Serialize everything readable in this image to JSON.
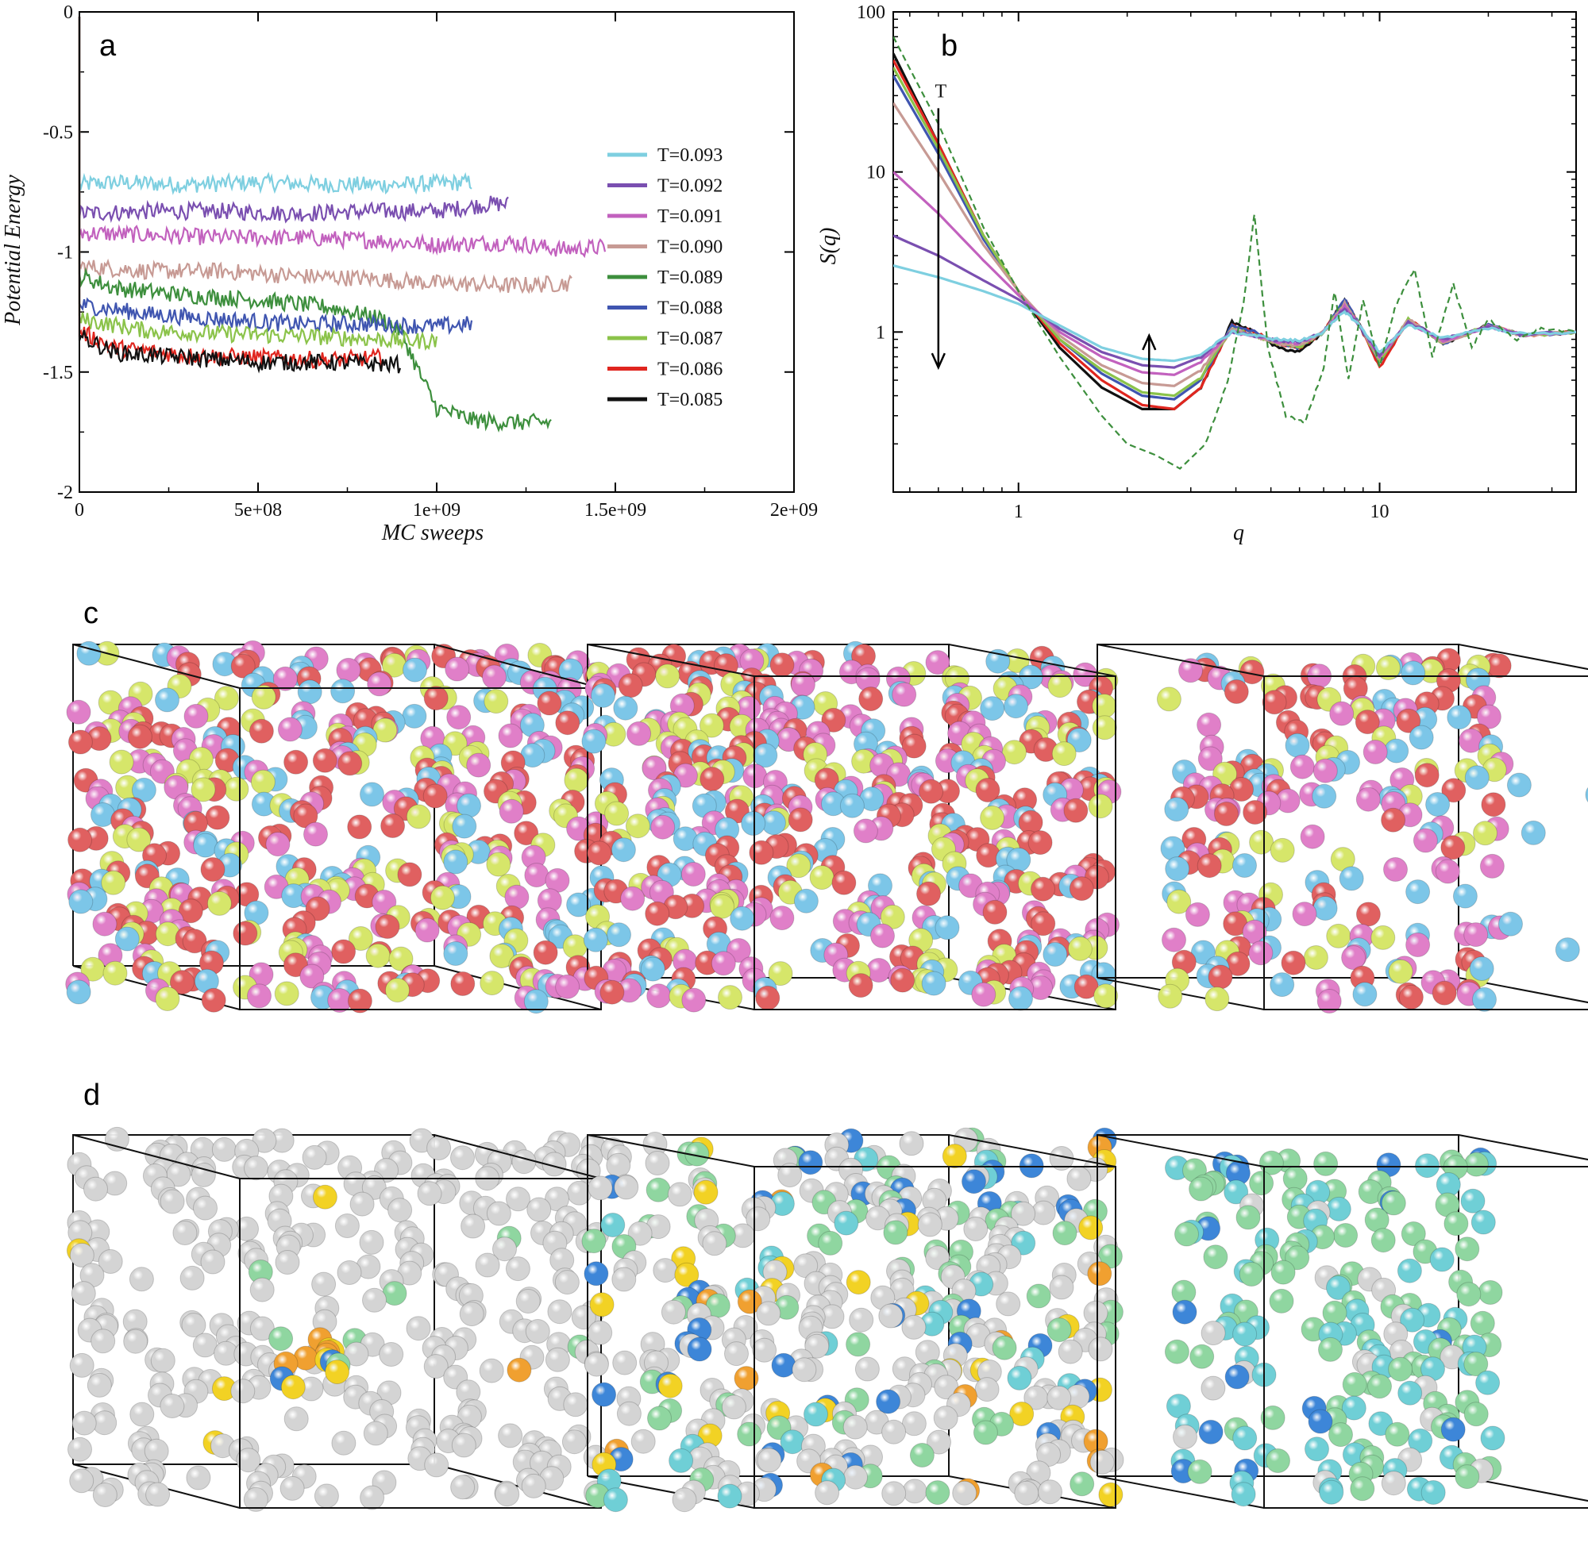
{
  "panels": {
    "a": "a",
    "b": "b",
    "c": "c",
    "d": "d"
  },
  "chart_data": [
    {
      "panel": "a",
      "type": "line",
      "xlabel": "MC sweeps",
      "ylabel": "Potential Energy",
      "xlim": [
        0,
        2000000000
      ],
      "ylim": [
        -2,
        0
      ],
      "xticks": [
        "0",
        "5e+08",
        "1e+09",
        "1.5e+09",
        "2e+09"
      ],
      "xtick_values": [
        0,
        500000000,
        1000000000,
        1500000000,
        2000000000
      ],
      "yticks": [
        "-2",
        "-1.5",
        "-1",
        "-0.5",
        "0"
      ],
      "ytick_values": [
        -2,
        -1.5,
        -1,
        -0.5,
        0
      ],
      "legend_position": "right",
      "series": [
        {
          "name": "T=0.093",
          "color": "#7ecfe0",
          "x": [
            0,
            100000000,
            300000000,
            500000000,
            700000000,
            900000000,
            1100000000
          ],
          "y": [
            -0.72,
            -0.71,
            -0.72,
            -0.71,
            -0.72,
            -0.72,
            -0.71
          ]
        },
        {
          "name": "T=0.092",
          "color": "#7a4fb0",
          "x": [
            0,
            200000000,
            400000000,
            600000000,
            800000000,
            1000000000,
            1150000000,
            1200000000
          ],
          "y": [
            -0.84,
            -0.83,
            -0.83,
            -0.84,
            -0.83,
            -0.83,
            -0.8,
            -0.8
          ]
        },
        {
          "name": "T=0.091",
          "color": "#c261be",
          "x": [
            0,
            200000000,
            400000000,
            600000000,
            800000000,
            1000000000,
            1200000000,
            1350000000,
            1470000000
          ],
          "y": [
            -0.92,
            -0.93,
            -0.94,
            -0.94,
            -0.95,
            -0.97,
            -0.96,
            -0.99,
            -0.98
          ]
        },
        {
          "name": "T=0.090",
          "color": "#c79a94",
          "x": [
            0,
            200000000,
            400000000,
            600000000,
            800000000,
            1000000000,
            1200000000,
            1380000000
          ],
          "y": [
            -1.06,
            -1.08,
            -1.08,
            -1.1,
            -1.11,
            -1.13,
            -1.14,
            -1.13
          ]
        },
        {
          "name": "T=0.089",
          "color": "#3d8f3d",
          "x": [
            0,
            100000000,
            300000000,
            500000000,
            700000000,
            850000000,
            900000000,
            950000000,
            1000000000,
            1100000000,
            1200000000,
            1320000000
          ],
          "y": [
            -1.1,
            -1.15,
            -1.18,
            -1.2,
            -1.23,
            -1.28,
            -1.33,
            -1.5,
            -1.65,
            -1.7,
            -1.71,
            -1.71
          ]
        },
        {
          "name": "T=0.088",
          "color": "#3f55b0",
          "x": [
            0,
            200000000,
            400000000,
            600000000,
            800000000,
            1000000000,
            1100000000
          ],
          "y": [
            -1.22,
            -1.26,
            -1.28,
            -1.3,
            -1.3,
            -1.31,
            -1.3
          ]
        },
        {
          "name": "T=0.087",
          "color": "#8bc34a",
          "x": [
            0,
            200000000,
            400000000,
            600000000,
            800000000,
            900000000,
            1000000000
          ],
          "y": [
            -1.28,
            -1.33,
            -1.34,
            -1.35,
            -1.36,
            -1.37,
            -1.37
          ]
        },
        {
          "name": "T=0.086",
          "color": "#e0261f",
          "x": [
            0,
            100000000,
            300000000,
            500000000,
            700000000,
            850000000
          ],
          "y": [
            -1.33,
            -1.4,
            -1.43,
            -1.44,
            -1.45,
            -1.44
          ]
        },
        {
          "name": "T=0.085",
          "color": "#111111",
          "x": [
            0,
            100000000,
            300000000,
            500000000,
            700000000,
            900000000
          ],
          "y": [
            -1.35,
            -1.42,
            -1.44,
            -1.46,
            -1.46,
            -1.47
          ]
        }
      ]
    },
    {
      "panel": "b",
      "type": "line",
      "xlabel": "q",
      "ylabel": "S(q)",
      "xscale": "log",
      "yscale": "log",
      "xlim": [
        0.45,
        35
      ],
      "ylim": [
        0.1,
        100
      ],
      "xticks": [
        "1",
        "10"
      ],
      "xtick_values": [
        1,
        10
      ],
      "yticks": [
        "1",
        "10",
        "100"
      ],
      "ytick_values": [
        1,
        10,
        100
      ],
      "annotations": [
        {
          "text": "T",
          "direction": "down",
          "x": 0.6,
          "y_from": 25,
          "y_to": 0.6
        },
        {
          "direction": "up",
          "x": 2.3,
          "y_from": 0.33,
          "y_to": 0.95
        }
      ],
      "series": [
        {
          "color": "#111111",
          "style": "solid",
          "x": [
            0.45,
            0.6,
            0.8,
            1.0,
            1.3,
            1.7,
            2.2,
            2.7,
            3.2,
            3.9,
            4.5,
            5.2,
            6.0,
            7.0,
            8.0,
            8.8,
            10.0,
            12.0,
            15.0,
            20.0,
            25.0,
            35.0
          ],
          "y": [
            55,
            15,
            4,
            1.8,
            0.8,
            0.45,
            0.33,
            0.33,
            0.45,
            1.15,
            1.0,
            0.8,
            0.75,
            1.0,
            1.6,
            1.1,
            0.65,
            1.2,
            0.85,
            1.1,
            0.95,
            1.0
          ]
        },
        {
          "color": "#e0261f",
          "style": "solid",
          "x": [
            0.45,
            0.6,
            0.8,
            1.0,
            1.3,
            1.7,
            2.2,
            2.7,
            3.2,
            3.9,
            4.5,
            5.2,
            6.0,
            7.0,
            8.0,
            8.8,
            10.0,
            12.0,
            15.0,
            20.0,
            25.0,
            35.0
          ],
          "y": [
            50,
            15,
            4,
            1.8,
            0.85,
            0.5,
            0.35,
            0.33,
            0.45,
            1.1,
            1.0,
            0.85,
            0.8,
            1.0,
            1.6,
            1.1,
            0.6,
            1.2,
            0.85,
            1.1,
            0.95,
            1.0
          ]
        },
        {
          "color": "#3f55b0",
          "style": "solid",
          "x": [
            0.45,
            0.6,
            0.8,
            1.0,
            1.3,
            1.7,
            2.2,
            2.7,
            3.2,
            3.9,
            4.5,
            5.2,
            6.0,
            7.0,
            8.0,
            8.8,
            10.0,
            12.0,
            15.0,
            20.0,
            25.0,
            35.0
          ],
          "y": [
            40,
            13,
            3.8,
            1.8,
            0.9,
            0.55,
            0.4,
            0.38,
            0.5,
            1.1,
            1.0,
            0.85,
            0.8,
            1.0,
            1.6,
            1.1,
            0.65,
            1.2,
            0.85,
            1.1,
            0.95,
            1.0
          ]
        },
        {
          "color": "#8bc34a",
          "style": "solid",
          "x": [
            0.45,
            0.6,
            0.8,
            1.0,
            1.3,
            1.7,
            2.2,
            2.7,
            3.2,
            3.9,
            4.5,
            5.2,
            6.0,
            7.0,
            8.0,
            8.8,
            10.0,
            12.0,
            15.0,
            20.0,
            25.0,
            35.0
          ],
          "y": [
            45,
            14,
            4,
            1.8,
            0.9,
            0.58,
            0.42,
            0.4,
            0.52,
            1.05,
            0.95,
            0.85,
            0.8,
            1.0,
            1.5,
            1.1,
            0.65,
            1.2,
            0.85,
            1.1,
            0.95,
            1.0
          ]
        },
        {
          "color": "#c79a94",
          "style": "solid",
          "x": [
            0.45,
            0.6,
            0.8,
            1.0,
            1.3,
            1.7,
            2.2,
            2.7,
            3.2,
            3.9,
            4.5,
            5.2,
            6.0,
            7.0,
            8.0,
            8.8,
            10.0,
            12.0,
            15.0,
            20.0,
            25.0,
            35.0
          ],
          "y": [
            27,
            10,
            3.5,
            1.8,
            0.95,
            0.62,
            0.48,
            0.46,
            0.58,
            1.05,
            0.95,
            0.85,
            0.82,
            1.0,
            1.5,
            1.1,
            0.68,
            1.2,
            0.85,
            1.1,
            0.95,
            1.0
          ]
        },
        {
          "color": "#c261be",
          "style": "solid",
          "x": [
            0.45,
            0.6,
            0.8,
            1.0,
            1.3,
            1.7,
            2.2,
            2.7,
            3.2,
            3.9,
            4.5,
            5.2,
            6.0,
            7.0,
            8.0,
            8.8,
            10.0,
            12.0,
            15.0,
            20.0,
            25.0,
            35.0
          ],
          "y": [
            10,
            5.5,
            2.8,
            1.7,
            1.0,
            0.7,
            0.56,
            0.54,
            0.65,
            1.0,
            0.95,
            0.87,
            0.85,
            1.0,
            1.45,
            1.1,
            0.7,
            1.15,
            0.88,
            1.08,
            0.96,
            1.0
          ]
        },
        {
          "color": "#7a4fb0",
          "style": "solid",
          "x": [
            0.45,
            0.6,
            0.8,
            1.0,
            1.3,
            1.7,
            2.2,
            2.7,
            3.2,
            3.9,
            4.5,
            5.2,
            6.0,
            7.0,
            8.0,
            8.8,
            10.0,
            12.0,
            15.0,
            20.0,
            25.0,
            35.0
          ],
          "y": [
            4,
            3,
            2.1,
            1.6,
            1.05,
            0.75,
            0.62,
            0.6,
            0.7,
            1.0,
            0.95,
            0.88,
            0.87,
            1.0,
            1.4,
            1.1,
            0.72,
            1.15,
            0.9,
            1.07,
            0.97,
            1.0
          ]
        },
        {
          "color": "#7ecfe0",
          "style": "solid",
          "x": [
            0.45,
            0.6,
            0.8,
            1.0,
            1.3,
            1.7,
            2.2,
            2.7,
            3.2,
            3.9,
            4.5,
            5.2,
            6.0,
            7.0,
            8.0,
            8.8,
            10.0,
            12.0,
            15.0,
            20.0,
            25.0,
            35.0
          ],
          "y": [
            2.6,
            2.2,
            1.8,
            1.5,
            1.1,
            0.8,
            0.68,
            0.66,
            0.72,
            1.0,
            0.95,
            0.9,
            0.88,
            1.0,
            1.35,
            1.1,
            0.75,
            1.1,
            0.92,
            1.06,
            0.97,
            1.0
          ]
        },
        {
          "color": "#3d8f3d",
          "style": "dashed",
          "x": [
            0.45,
            0.6,
            0.8,
            1.0,
            1.3,
            1.7,
            2.0,
            2.4,
            2.8,
            3.3,
            3.8,
            4.2,
            4.5,
            4.9,
            5.5,
            6.2,
            7.0,
            7.5,
            8.2,
            9.0,
            10.0,
            11.0,
            12.5,
            14.0,
            16.0,
            18.0,
            20.0,
            24.0,
            28.0,
            35.0
          ],
          "y": [
            70,
            20,
            4.5,
            1.8,
            0.7,
            0.3,
            0.2,
            0.17,
            0.14,
            0.2,
            0.5,
            1.5,
            5.5,
            0.8,
            0.3,
            0.27,
            0.6,
            1.8,
            0.5,
            1.6,
            0.6,
            1.4,
            2.5,
            0.7,
            2.0,
            0.8,
            1.2,
            0.9,
            1.05,
            1.0
          ]
        }
      ]
    }
  ],
  "snapshots": {
    "c": {
      "colors": [
        "#e06060",
        "#e07fc8",
        "#d6e66a",
        "#7cc6e8"
      ],
      "counts": [
        420,
        460,
        210
      ]
    },
    "d": {
      "colors": [
        "#d4d4d4",
        "#8fd6a0",
        "#6fcfd6",
        "#3d86d8",
        "#f2d224",
        "#f0a030"
      ],
      "counts": [
        300,
        380,
        190
      ]
    }
  }
}
